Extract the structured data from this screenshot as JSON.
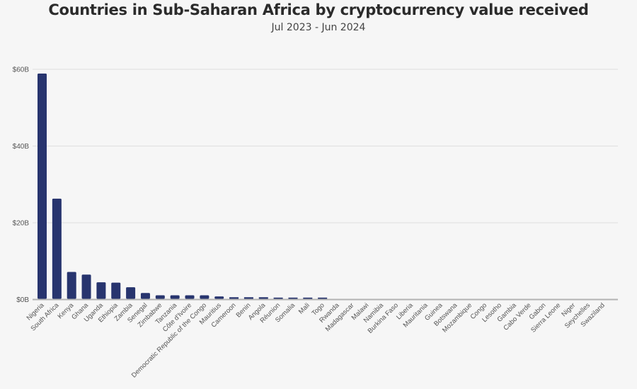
{
  "chart_data": {
    "type": "bar",
    "title": "Countries in Sub-Saharan Africa by cryptocurrency value received",
    "subtitle": "Jul 2023 - Jun 2024",
    "xlabel": "",
    "ylabel": "",
    "ylim": [
      0,
      60
    ],
    "y_unit": "billion USD",
    "y_ticks": [
      {
        "value": 0,
        "label": "$0B"
      },
      {
        "value": 20,
        "label": "$20B"
      },
      {
        "value": 40,
        "label": "$40B"
      },
      {
        "value": 60,
        "label": "$60B"
      }
    ],
    "grid": true,
    "legend": "none",
    "bar_color": "#27346e",
    "categories": [
      "Nigeria",
      "South Africa",
      "Kenya",
      "Ghana",
      "Uganda",
      "Ethiopia",
      "Zambia",
      "Senegal",
      "Zimbabwe",
      "Tanzania",
      "Côte d'Ivoire",
      "Democratic Republic of the Congo",
      "Mauritius",
      "Cameroon",
      "Benin",
      "Angola",
      "Réunion",
      "Somalia",
      "Mali",
      "Togo",
      "Rwanda",
      "Madagascar",
      "Malawi",
      "Namibia",
      "Burkina Faso",
      "Liberia",
      "Mauritania",
      "Guinea",
      "Botswana",
      "Mozambique",
      "Congo",
      "Lesotho",
      "Gambia",
      "Cabo Verde",
      "Gabon",
      "Sierra Leone",
      "Niger",
      "Seychelles",
      "Swaziland"
    ],
    "values": [
      58.9,
      26.3,
      7.2,
      6.5,
      4.5,
      4.4,
      3.2,
      1.7,
      1.1,
      1.1,
      1.1,
      1.1,
      0.8,
      0.6,
      0.6,
      0.6,
      0.5,
      0.5,
      0.5,
      0.5,
      0.15,
      0.15,
      0.15,
      0.15,
      0.15,
      0.05,
      0.05,
      0.03,
      0.03,
      0.02,
      0.02,
      0.02,
      0.02,
      0.01,
      0.01,
      0.01,
      0.01,
      0.01,
      0.01
    ]
  }
}
